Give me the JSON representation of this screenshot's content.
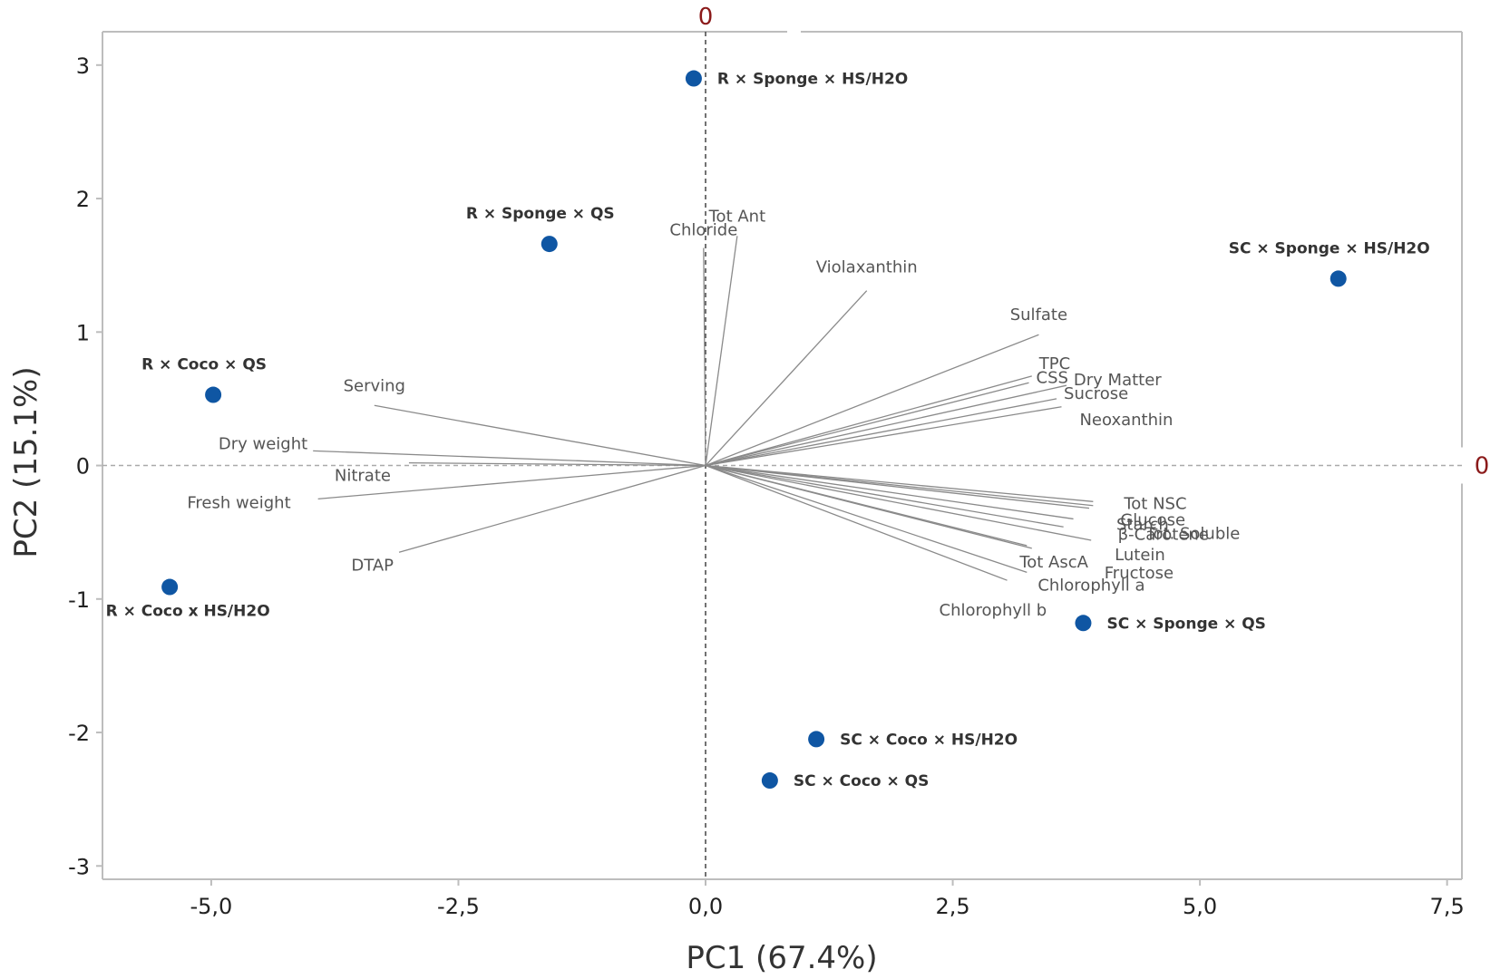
{
  "chart_data": {
    "type": "scatter",
    "subtype": "pca-biplot",
    "xlabel": "PC1 (67.4%)",
    "ylabel": "PC2 (15.1%)",
    "xlim": [
      -6.1,
      7.65
    ],
    "ylim": [
      -3.1,
      3.25
    ],
    "xticks": [
      -5.0,
      -2.5,
      0.0,
      2.5,
      5.0,
      7.5
    ],
    "xtick_labels": [
      "-5,0",
      "-2,5",
      "0,0",
      "2,5",
      "5,0",
      "7,5"
    ],
    "yticks": [
      -3,
      -2,
      -1,
      0,
      1,
      2,
      3
    ],
    "ytick_labels": [
      "-3",
      "-2",
      "-1",
      "0",
      "1",
      "2",
      "3"
    ],
    "reference_lines": {
      "x0_label": "0",
      "y0_label": "0"
    },
    "colors": {
      "points": "#0f56a3",
      "vectors": "#8a8a8a",
      "reference_label": "#8b1a1a",
      "frame": "#bdbdbd"
    },
    "points": [
      {
        "label": "R × Sponge × HS/H2O",
        "x": -0.12,
        "y": 2.9,
        "anchor": "right"
      },
      {
        "label": "R × Sponge × QS",
        "x": -1.58,
        "y": 1.66,
        "anchor": "above"
      },
      {
        "label": "SC × Sponge × HS/H2O",
        "x": 6.4,
        "y": 1.4,
        "anchor": "above"
      },
      {
        "label": "R × Coco × QS",
        "x": -4.98,
        "y": 0.53,
        "anchor": "above"
      },
      {
        "label": "R × Coco x HS/H2O",
        "x": -5.42,
        "y": -0.91,
        "anchor": "below"
      },
      {
        "label": "SC × Sponge × QS",
        "x": 3.82,
        "y": -1.18,
        "anchor": "right"
      },
      {
        "label": "SC × Coco × HS/H2O",
        "x": 1.12,
        "y": -2.05,
        "anchor": "right"
      },
      {
        "label": "SC × Coco × QS",
        "x": 0.65,
        "y": -2.36,
        "anchor": "right"
      }
    ],
    "vectors": [
      {
        "label": "Tot Ant",
        "x": 0.32,
        "y": 1.72
      },
      {
        "label": "Chloride",
        "x": -0.02,
        "y": 1.63
      },
      {
        "label": "Violaxanthin",
        "x": 1.63,
        "y": 1.31
      },
      {
        "label": "Sulfate",
        "x": 3.37,
        "y": 0.98
      },
      {
        "label": "TPC",
        "x": 3.3,
        "y": 0.67
      },
      {
        "label": "CSS",
        "x": 3.27,
        "y": 0.62
      },
      {
        "label": "Dry Matter",
        "x": 3.65,
        "y": 0.6
      },
      {
        "label": "Sucrose",
        "x": 3.55,
        "y": 0.5
      },
      {
        "label": "Neoxanthin",
        "x": 3.6,
        "y": 0.44
      },
      {
        "label": "Serving",
        "x": -3.35,
        "y": 0.45
      },
      {
        "label": "Dry weight",
        "x": -3.97,
        "y": 0.11
      },
      {
        "label": "Nitrate",
        "x": -3.0,
        "y": 0.02
      },
      {
        "label": "Fresh weight",
        "x": -3.92,
        "y": -0.25
      },
      {
        "label": "DTAP",
        "x": -3.1,
        "y": -0.65
      },
      {
        "label": "Tot NSC",
        "x": 3.92,
        "y": -0.27
      },
      {
        "label": "Glucose",
        "x": 3.92,
        "y": -0.3
      },
      {
        "label": "Starch",
        "x": 3.88,
        "y": -0.32
      },
      {
        "label": "Tot. Soluble",
        "x": 3.72,
        "y": -0.4
      },
      {
        "label": "β-Carotene",
        "x": 3.62,
        "y": -0.46
      },
      {
        "label": "Lutein",
        "x": 3.9,
        "y": -0.56
      },
      {
        "label": "Fructose",
        "x": 3.3,
        "y": -0.62
      },
      {
        "label": "Tot AscA",
        "x": 3.25,
        "y": -0.6
      },
      {
        "label": "Chlorophyll a",
        "x": 3.25,
        "y": -0.8
      },
      {
        "label": "Chlorophyll b",
        "x": 3.05,
        "y": -0.86
      }
    ]
  }
}
